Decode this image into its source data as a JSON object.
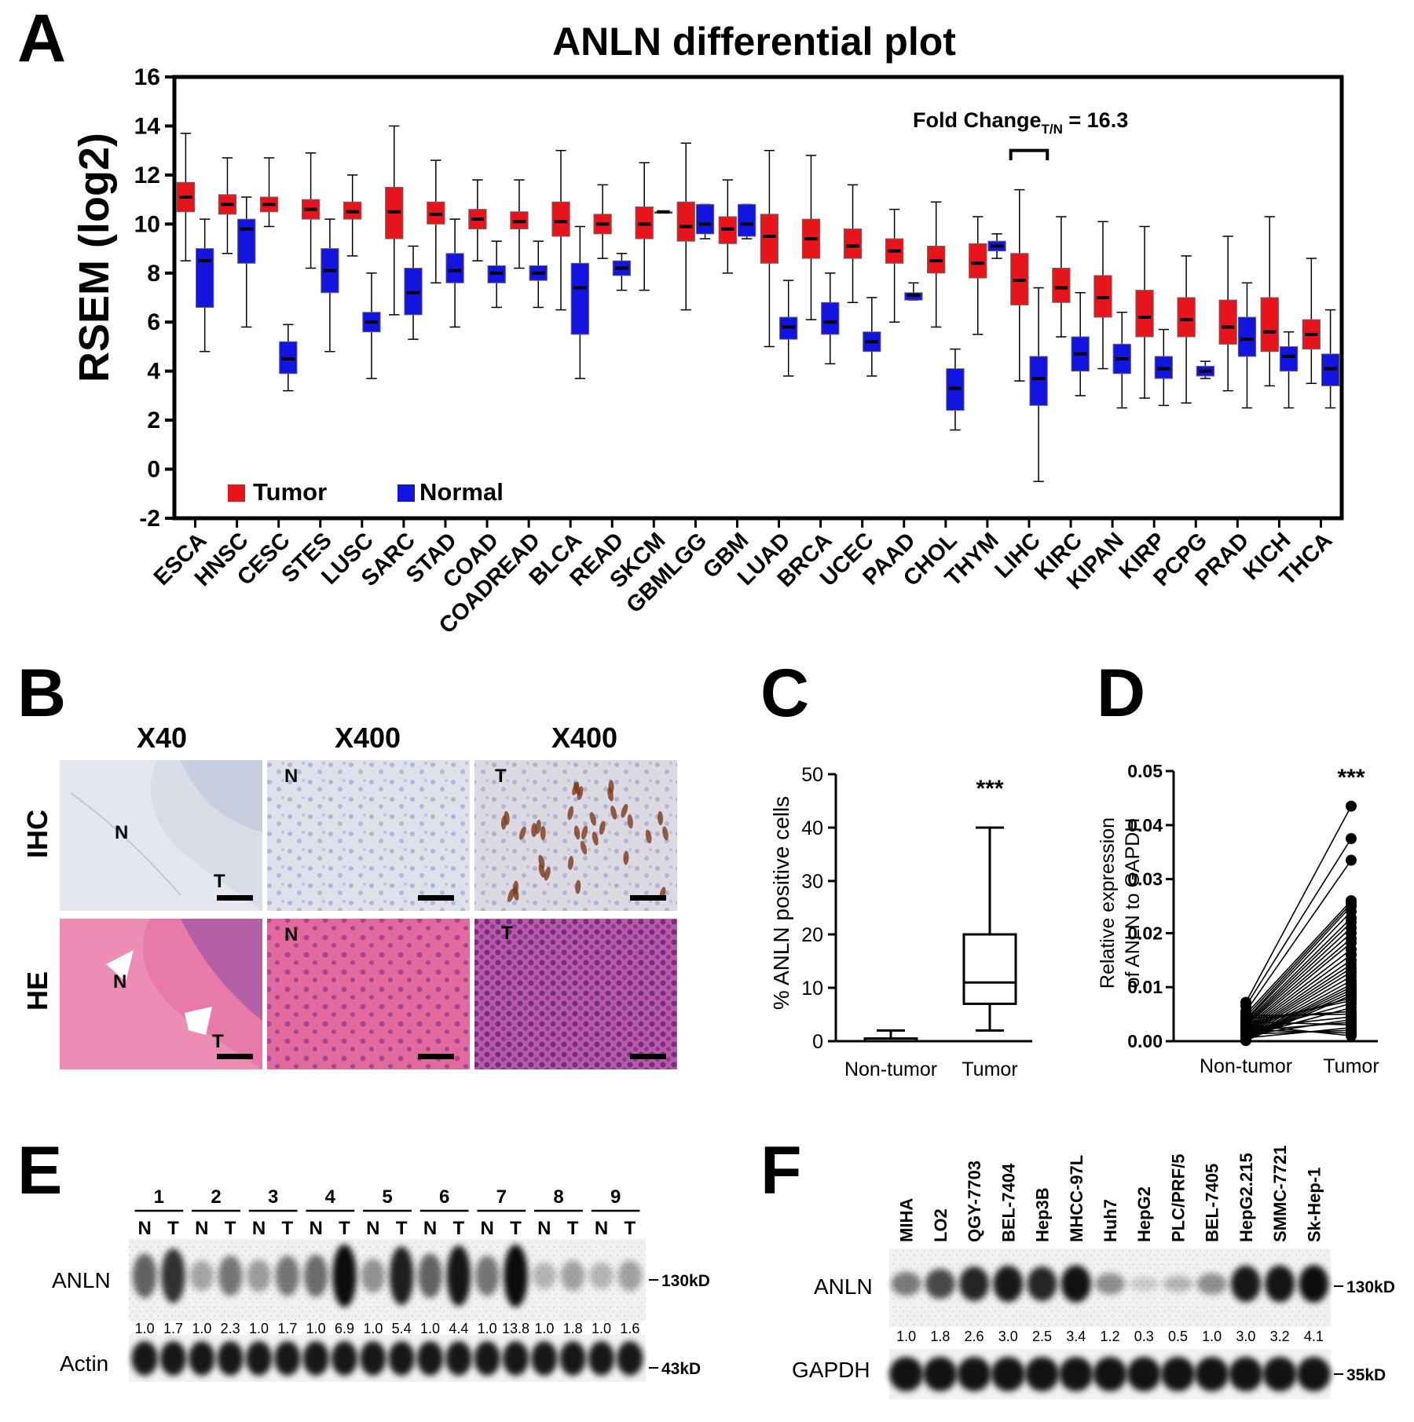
{
  "colors": {
    "tumor": "#e8141b",
    "normal": "#1414e0",
    "axis": "#000000",
    "he_bg": "#e56ea6",
    "ihc_bg": "#d7dce6",
    "blot_bg": "#f1f1f1"
  },
  "panel_labels": {
    "a": "A",
    "b": "B",
    "c": "C",
    "d": "D",
    "e": "E",
    "f": "F"
  },
  "chart_data": [
    {
      "type": "box",
      "panel": "A",
      "title": "ANLN differential plot",
      "ylabel": "RSEM (log2)",
      "ylim": [
        -2,
        16
      ],
      "yticks": [
        -2,
        0,
        2,
        4,
        6,
        8,
        10,
        12,
        14,
        16
      ],
      "legend": [
        "Tumor",
        "Normal"
      ],
      "legend_position": "bottom-left",
      "annotation": {
        "prefix": "Fold Change",
        "sub": "T/N",
        "suffix": " = 16.3",
        "target": "LIHC"
      },
      "categories": [
        "ESCA",
        "HNSC",
        "CESC",
        "STES",
        "LUSC",
        "SARC",
        "STAD",
        "COAD",
        "COADREAD",
        "BLCA",
        "READ",
        "SKCM",
        "GBMLGG",
        "GBM",
        "LUAD",
        "BRCA",
        "UCEC",
        "PAAD",
        "CHOL",
        "THYM",
        "LIHC",
        "KIRC",
        "KIPAN",
        "KIRP",
        "PCPG",
        "PRAD",
        "KICH",
        "THCA"
      ],
      "series": [
        {
          "name": "Tumor",
          "boxes": [
            [
              8.5,
              10.5,
              11.1,
              11.7,
              13.7
            ],
            [
              8.8,
              10.4,
              10.8,
              11.2,
              12.7
            ],
            [
              9.9,
              10.5,
              10.8,
              11.1,
              12.7
            ],
            [
              8.2,
              10.2,
              10.6,
              11.0,
              12.9
            ],
            [
              8.7,
              10.2,
              10.5,
              10.9,
              12.0
            ],
            [
              6.3,
              9.4,
              10.5,
              11.5,
              14.0
            ],
            [
              7.6,
              10.0,
              10.4,
              10.9,
              12.6
            ],
            [
              8.5,
              9.8,
              10.2,
              10.6,
              11.8
            ],
            [
              8.2,
              9.8,
              10.1,
              10.5,
              11.8
            ],
            [
              6.5,
              9.5,
              10.1,
              10.9,
              13.0
            ],
            [
              8.6,
              9.6,
              10.0,
              10.4,
              11.6
            ],
            [
              7.3,
              9.4,
              10.0,
              10.7,
              12.5
            ],
            [
              6.5,
              9.3,
              9.9,
              10.9,
              13.3
            ],
            [
              8.0,
              9.2,
              9.8,
              10.3,
              11.8
            ],
            [
              5.0,
              8.4,
              9.5,
              10.4,
              13.0
            ],
            [
              6.1,
              8.6,
              9.4,
              10.2,
              12.8
            ],
            [
              6.8,
              8.6,
              9.1,
              9.8,
              11.6
            ],
            [
              6.0,
              8.4,
              8.9,
              9.4,
              10.6
            ],
            [
              5.8,
              8.0,
              8.5,
              9.1,
              10.9
            ],
            [
              5.5,
              7.8,
              8.4,
              9.2,
              10.3
            ],
            [
              3.6,
              6.7,
              7.7,
              8.8,
              11.4
            ],
            [
              5.4,
              6.8,
              7.4,
              8.2,
              10.3
            ],
            [
              4.1,
              6.2,
              7.0,
              7.9,
              10.1
            ],
            [
              2.9,
              5.4,
              6.2,
              7.3,
              9.9
            ],
            [
              2.7,
              5.4,
              6.1,
              7.0,
              8.7
            ],
            [
              3.2,
              5.1,
              5.8,
              6.9,
              9.5
            ],
            [
              3.4,
              4.8,
              5.6,
              7.0,
              10.3
            ],
            [
              3.5,
              4.9,
              5.5,
              6.1,
              8.6
            ]
          ]
        },
        {
          "name": "Normal",
          "boxes": [
            [
              4.8,
              6.6,
              8.5,
              9.0,
              10.2
            ],
            [
              5.8,
              8.4,
              9.8,
              10.2,
              11.1
            ],
            [
              3.2,
              3.9,
              4.5,
              5.2,
              5.9
            ],
            [
              4.8,
              7.2,
              8.1,
              9.0,
              10.2
            ],
            [
              3.7,
              5.6,
              6.0,
              6.4,
              8.0
            ],
            [
              5.3,
              6.3,
              7.2,
              8.2,
              9.1
            ],
            [
              5.8,
              7.6,
              8.1,
              8.8,
              10.2
            ],
            [
              6.6,
              7.6,
              8.0,
              8.3,
              9.3
            ],
            [
              6.6,
              7.7,
              8.0,
              8.3,
              9.3
            ],
            [
              3.7,
              5.5,
              7.4,
              8.4,
              9.9
            ],
            [
              7.3,
              7.9,
              8.2,
              8.5,
              8.8
            ],
            [
              10.5,
              10.5,
              10.5,
              10.5,
              10.5
            ],
            [
              9.4,
              9.6,
              10.0,
              10.8,
              10.8
            ],
            [
              9.4,
              9.5,
              10.0,
              10.8,
              10.8
            ],
            [
              3.8,
              5.3,
              5.8,
              6.2,
              7.7
            ],
            [
              4.3,
              5.5,
              6.0,
              6.8,
              8.0
            ],
            [
              3.8,
              4.8,
              5.2,
              5.6,
              7.0
            ],
            [
              6.9,
              6.9,
              7.1,
              7.2,
              7.6
            ],
            [
              1.6,
              2.4,
              3.3,
              4.1,
              4.9
            ],
            [
              8.6,
              8.9,
              9.1,
              9.3,
              9.6
            ],
            [
              -0.5,
              2.6,
              3.7,
              4.6,
              7.4
            ],
            [
              3.0,
              4.0,
              4.7,
              5.4,
              7.2
            ],
            [
              2.5,
              3.9,
              4.5,
              5.1,
              6.4
            ],
            [
              2.6,
              3.7,
              4.1,
              4.6,
              5.7
            ],
            [
              3.7,
              3.8,
              4.0,
              4.2,
              4.4
            ],
            [
              2.5,
              4.6,
              5.3,
              6.2,
              7.6
            ],
            [
              2.5,
              4.0,
              4.6,
              5.0,
              5.6
            ],
            [
              2.5,
              3.4,
              4.1,
              4.7,
              6.5
            ]
          ]
        }
      ]
    },
    {
      "type": "box",
      "panel": "C",
      "ylabel": "% ANLN positive cells",
      "ylim": [
        0,
        50
      ],
      "yticks": [
        0,
        10,
        20,
        30,
        40,
        50
      ],
      "categories": [
        "Non-tumor",
        "Tumor"
      ],
      "boxes": [
        [
          0,
          0,
          0,
          0.5,
          2
        ],
        [
          2,
          7,
          11,
          20,
          40
        ]
      ],
      "significance": "***"
    },
    {
      "type": "paired_scatter",
      "panel": "D",
      "ylabel_lines": [
        "Relative expression",
        "of ANLN to GAPDH"
      ],
      "ylim": [
        0,
        0.05
      ],
      "yticks": [
        "0.00",
        "0.01",
        "0.02",
        "0.03",
        "0.04",
        "0.05"
      ],
      "categories": [
        "Non-tumor",
        "Tumor"
      ],
      "non_tumor": [
        0.0072,
        0.0065,
        0.0055,
        0.005,
        0.0045,
        0.004,
        0.0038,
        0.0035,
        0.0032,
        0.003,
        0.0028,
        0.0025,
        0.0022,
        0.002,
        0.0018,
        0.0016,
        0.0014,
        0.0012,
        0.001,
        0.0008,
        0.0006,
        0.0005,
        0.0004,
        0.0003,
        0.0002,
        0.0001,
        0.0027,
        0.0033,
        0.0015,
        0.0009,
        0.0042,
        0.0047,
        0.0024,
        0.0011,
        0.0019,
        0.0036,
        0.0006,
        0.0013,
        0.0021,
        0.003
      ],
      "tumor": [
        0.0435,
        0.0375,
        0.0335,
        0.026,
        0.0255,
        0.025,
        0.024,
        0.0228,
        0.022,
        0.021,
        0.02,
        0.019,
        0.0182,
        0.017,
        0.016,
        0.015,
        0.0142,
        0.0135,
        0.0128,
        0.012,
        0.0112,
        0.0105,
        0.01,
        0.0095,
        0.009,
        0.0085,
        0.008,
        0.0075,
        0.007,
        0.0062,
        0.0055,
        0.005,
        0.0045,
        0.004,
        0.0035,
        0.003,
        0.0025,
        0.002,
        0.0015,
        0.001
      ],
      "significance": "***"
    }
  ],
  "panel_b": {
    "columns": [
      "X40",
      "X400",
      "X400"
    ],
    "rows": [
      "IHC",
      "HE"
    ],
    "tiles": [
      [
        [
          "N",
          "T"
        ],
        [
          "N"
        ],
        [
          "T"
        ]
      ],
      [
        [
          "N",
          "T"
        ],
        [
          "N"
        ],
        [
          "T"
        ]
      ]
    ]
  },
  "panel_e": {
    "patients": [
      "1",
      "2",
      "3",
      "4",
      "5",
      "6",
      "7",
      "8",
      "9"
    ],
    "lane_label_n": "N",
    "lane_label_t": "T",
    "bands": [
      "ANLN",
      "Actin"
    ],
    "mw": [
      "130kD",
      "43kD"
    ],
    "values": [
      "1.0",
      "1.7",
      "1.0",
      "2.3",
      "1.0",
      "1.7",
      "1.0",
      "6.9",
      "1.0",
      "5.4",
      "1.0",
      "4.4",
      "1.0",
      "13.8",
      "1.0",
      "1.8",
      "1.0",
      "1.6"
    ],
    "anln_intensity": [
      0.55,
      0.8,
      0.2,
      0.45,
      0.25,
      0.45,
      0.5,
      1.0,
      0.3,
      0.9,
      0.55,
      0.95,
      0.45,
      1.0,
      0.12,
      0.22,
      0.12,
      0.22
    ]
  },
  "panel_f": {
    "cell_lines": [
      "MIHA",
      "LO2",
      "QGY-7703",
      "BEL-7404",
      "Hep3B",
      "MHCC-97L",
      "Huh7",
      "HepG2",
      "PLC/PRF/5",
      "BEL-7405",
      "HepG2.215",
      "SMMC-7721",
      "Sk-Hep-1"
    ],
    "bands": [
      "ANLN",
      "GAPDH"
    ],
    "mw": [
      "130kD",
      "35kD"
    ],
    "values": [
      "1.0",
      "1.8",
      "2.6",
      "3.0",
      "2.5",
      "3.4",
      "1.2",
      "0.3",
      "0.5",
      "1.0",
      "3.0",
      "3.2",
      "4.1"
    ],
    "anln_intensity": [
      0.45,
      0.7,
      0.88,
      0.95,
      0.88,
      0.98,
      0.35,
      0.05,
      0.15,
      0.35,
      0.95,
      0.97,
      1.0
    ]
  }
}
